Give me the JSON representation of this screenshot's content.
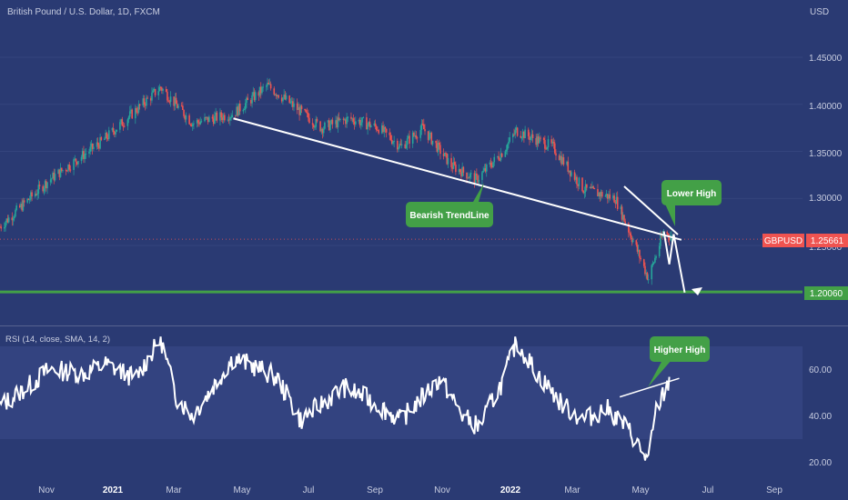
{
  "header": {
    "symbol_title": "British Pound / U.S. Dollar, 1D, FXCM",
    "currency": "USD"
  },
  "price_panel": {
    "y_ticks": [
      "1.45000",
      "1.40000",
      "1.35000",
      "1.30000",
      "1.25000"
    ],
    "symbol_badge": "GBPUSD",
    "last_price": "1.25661",
    "support_price": "1.20060",
    "annotations": {
      "trendline": "Bearish TrendLine",
      "lower_high": "Lower High"
    },
    "colors": {
      "up": "#26a69a",
      "down": "#ef5350",
      "badge": "#ef5350",
      "support": "#43a047",
      "callout": "#43a047"
    }
  },
  "rsi_panel": {
    "title": "RSI (14, close, SMA, 14, 2)",
    "y_ticks": [
      "60.00",
      "40.00",
      "20.00"
    ],
    "annotations": {
      "higher_high": "Higher High"
    }
  },
  "x_axis": {
    "ticks": [
      "Nov",
      "2021",
      "Mar",
      "May",
      "Jul",
      "Sep",
      "Nov",
      "2022",
      "Mar",
      "May",
      "Jul",
      "Sep"
    ]
  },
  "chart_data": [
    {
      "type": "candlestick",
      "series_name": "GBPUSD",
      "x_range": [
        "2020-10-01",
        "2022-09-30"
      ],
      "ylim": [
        1.19,
        1.47
      ],
      "x_dates": [
        "2020-10-01",
        "2020-11-15",
        "2021-01-01",
        "2021-02-24",
        "2021-03-25",
        "2021-05-01",
        "2021-06-01",
        "2021-07-20",
        "2021-08-15",
        "2021-09-10",
        "2021-09-30",
        "2021-10-20",
        "2021-11-15",
        "2021-12-08",
        "2022-01-01",
        "2022-01-13",
        "2022-02-15",
        "2022-03-15",
        "2022-04-13",
        "2022-05-01",
        "2022-05-13",
        "2022-05-27",
        "2022-06-05"
      ],
      "close": [
        1.27,
        1.32,
        1.36,
        1.418,
        1.38,
        1.39,
        1.42,
        1.375,
        1.385,
        1.375,
        1.355,
        1.375,
        1.335,
        1.32,
        1.35,
        1.372,
        1.355,
        1.31,
        1.3,
        1.25,
        1.215,
        1.265,
        1.2566
      ],
      "last_close": 1.25661,
      "support_level": 1.2006,
      "trendline": [
        {
          "date": "2021-05-01",
          "price": 1.385
        },
        {
          "date": "2022-06-12",
          "price": 1.256
        }
      ],
      "projection": [
        {
          "date": "2022-05-27",
          "price": 1.265
        },
        {
          "date": "2022-06-01",
          "price": 1.23
        },
        {
          "date": "2022-06-05",
          "price": 1.262
        },
        {
          "date": "2022-06-15",
          "price": 1.2
        }
      ]
    },
    {
      "type": "line",
      "series_name": "RSI",
      "ylim": [
        15,
        75
      ],
      "x_dates": [
        "2020-10-01",
        "2020-10-25",
        "2020-11-15",
        "2020-12-15",
        "2021-01-05",
        "2021-02-01",
        "2021-02-24",
        "2021-03-10",
        "2021-03-25",
        "2021-04-15",
        "2021-05-01",
        "2021-05-25",
        "2021-06-10",
        "2021-07-01",
        "2021-07-20",
        "2021-08-10",
        "2021-09-01",
        "2021-09-30",
        "2021-10-20",
        "2021-11-05",
        "2021-11-25",
        "2021-12-10",
        "2022-01-01",
        "2022-01-13",
        "2022-02-01",
        "2022-02-25",
        "2022-03-15",
        "2022-04-05",
        "2022-04-25",
        "2022-05-13",
        "2022-05-20",
        "2022-06-01"
      ],
      "values": [
        44,
        52,
        60,
        58,
        62,
        56,
        73,
        48,
        40,
        54,
        65,
        60,
        56,
        38,
        45,
        52,
        47,
        38,
        48,
        56,
        40,
        35,
        55,
        72,
        58,
        44,
        38,
        43,
        34,
        20,
        42,
        55
      ],
      "ref_band": [
        30,
        70
      ],
      "divergence_line": [
        {
          "date": "2022-04-17",
          "value": 48
        },
        {
          "date": "2022-06-10",
          "value": 56
        }
      ]
    }
  ]
}
